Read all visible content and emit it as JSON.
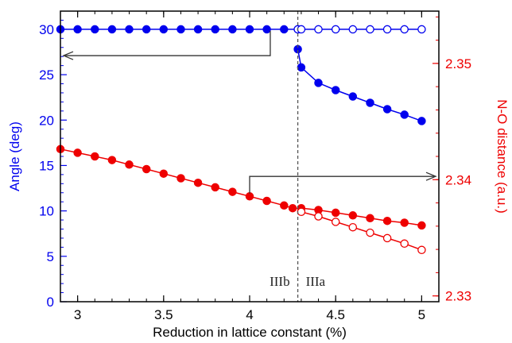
{
  "chart_data": {
    "type": "line",
    "xlabel": "Reduction in lattice constant (%)",
    "ylabel_left": "Angle (deg)",
    "ylabel_right": "N-O distance (a.u.)",
    "xlim": [
      2.9,
      5.1
    ],
    "ylim_left": [
      0,
      32
    ],
    "ylim_right": [
      2.3295,
      2.3545
    ],
    "x_ticks": [
      "3",
      "3.5",
      "4",
      "4.5",
      "5"
    ],
    "y_left_ticks": [
      "0",
      "5",
      "10",
      "15",
      "20",
      "25",
      "30"
    ],
    "y_right_ticks": [
      "2.33",
      "2.34",
      "2.35"
    ],
    "colors": {
      "angle": "#0000ee",
      "distance": "#ee0000",
      "axis": "#000000",
      "divider": "#555555",
      "arrow": "#333333"
    },
    "divider_x": 4.28,
    "region_labels": [
      "IIIb",
      "IIIa"
    ],
    "series": [
      {
        "axis": "left",
        "color": "#0000ee",
        "marker": "filled",
        "x": [
          2.9,
          3.0,
          3.1,
          3.2,
          3.3,
          3.4,
          3.5,
          3.6,
          3.7,
          3.8,
          3.9,
          4.0,
          4.1,
          4.2,
          4.28
        ],
        "y": [
          30,
          30,
          30,
          30,
          30,
          30,
          30,
          30,
          30,
          30,
          30,
          30,
          30,
          30,
          30
        ]
      },
      {
        "axis": "left",
        "color": "#0000ee",
        "marker": "filled",
        "x": [
          4.28,
          4.3,
          4.4,
          4.5,
          4.6,
          4.7,
          4.8,
          4.9,
          5.0
        ],
        "y": [
          27.8,
          25.8,
          24.1,
          23.3,
          22.6,
          21.9,
          21.2,
          20.6,
          19.9
        ]
      },
      {
        "axis": "left",
        "color": "#0000ee",
        "marker": "open",
        "x": [
          4.28,
          4.3,
          4.4,
          4.5,
          4.6,
          4.7,
          4.8,
          4.9,
          5.0
        ],
        "y": [
          30,
          30,
          30,
          30,
          30,
          30,
          30,
          30,
          30
        ]
      },
      {
        "axis": "left",
        "color": "#ee0000",
        "marker": "filled",
        "x": [
          2.9,
          3.0,
          3.1,
          3.2,
          3.3,
          3.4,
          3.5,
          3.6,
          3.7,
          3.8,
          3.9,
          4.0,
          4.1,
          4.2,
          4.25,
          4.3,
          4.4,
          4.5,
          4.6,
          4.7,
          4.8,
          4.9,
          5.0
        ],
        "y": [
          16.8,
          16.4,
          16.0,
          15.6,
          15.1,
          14.6,
          14.1,
          13.6,
          13.1,
          12.6,
          12.1,
          11.6,
          11.1,
          10.6,
          10.3,
          10.3,
          10.1,
          9.8,
          9.5,
          9.2,
          8.9,
          8.7,
          8.4
        ]
      },
      {
        "axis": "left",
        "color": "#ee0000",
        "marker": "open",
        "x": [
          4.3,
          4.4,
          4.5,
          4.6,
          4.7,
          4.8,
          4.9,
          5.0
        ],
        "y": [
          9.9,
          9.4,
          8.8,
          8.2,
          7.6,
          7.0,
          6.4,
          5.7
        ]
      }
    ]
  }
}
